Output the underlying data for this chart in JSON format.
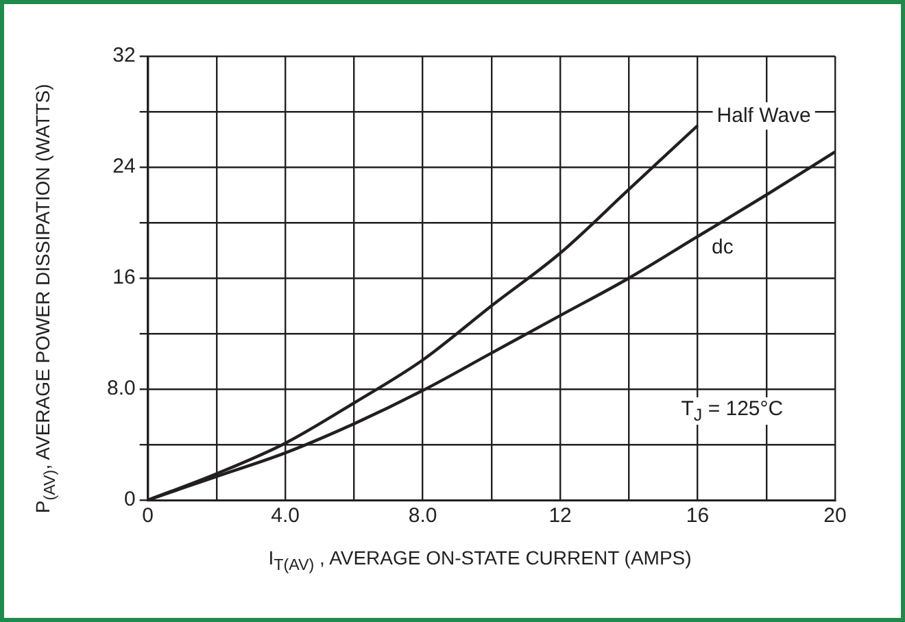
{
  "chart_data": {
    "type": "line",
    "xlabel": "I$_{T(AV)}$ , AVERAGE ON-STATE CURRENT (AMPS)",
    "ylabel": "P$_{(AV)}$, AVERAGE POWER DISSIPATION (WATTS)",
    "annotations": [
      "T$_{J}$ = 125°C"
    ],
    "series": [
      {
        "name": "Half Wave",
        "color": "#231f20",
        "x": [
          0,
          2,
          4,
          6,
          8,
          10,
          12,
          14,
          16
        ],
        "values": [
          0,
          1.9,
          4.1,
          7.0,
          10.1,
          14.0,
          17.8,
          22.4,
          27.0
        ]
      },
      {
        "name": "dc",
        "color": "#231f20",
        "x": [
          0,
          2,
          4,
          6,
          8,
          10,
          12,
          14,
          16,
          18,
          20
        ],
        "values": [
          0,
          1.7,
          3.4,
          5.5,
          7.9,
          10.6,
          13.3,
          16.0,
          19.0,
          22.0,
          25.1
        ]
      }
    ],
    "xlim": [
      0,
      20
    ],
    "xticks": [
      0,
      {
        "value": 2,
        "label": null
      },
      {
        "value": 4,
        "label": "4.0"
      },
      {
        "value": 6,
        "label": null
      },
      {
        "value": 8,
        "label": "8.0"
      },
      {
        "value": 10,
        "label": null
      },
      12,
      {
        "value": 14,
        "label": null
      },
      16,
      {
        "value": 18,
        "label": null
      },
      20
    ],
    "ylim": [
      0,
      32
    ],
    "yticks": [
      0,
      {
        "value": 4,
        "label": null
      },
      {
        "value": 8,
        "label": "8.0"
      },
      {
        "value": 12,
        "label": null
      },
      16,
      {
        "value": 20,
        "label": null
      },
      24,
      {
        "value": 28,
        "label": null
      },
      32
    ],
    "grid": true,
    "legend": false,
    "marker": "none",
    "line_style": "solid"
  }
}
